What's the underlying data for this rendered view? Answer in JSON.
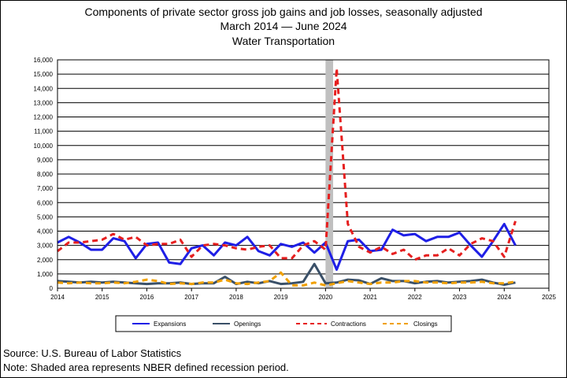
{
  "chart_data": {
    "type": "line",
    "title": "Components of private sector gross job gains and job losses, seasonally adjusted",
    "subtitle": "March 2014  — June 2024",
    "subsubtitle": "Water Transportation",
    "xlabel": "",
    "ylabel": "",
    "xlim": [
      2014,
      2025
    ],
    "ylim": [
      0,
      16000
    ],
    "x_ticks": [
      "2014",
      "2015",
      "2016",
      "2017",
      "2018",
      "2019",
      "2020",
      "2021",
      "2022",
      "2023",
      "2024",
      "2025"
    ],
    "y_ticks": [
      "0",
      "1,000",
      "2,000",
      "3,000",
      "4,000",
      "5,000",
      "6,000",
      "7,000",
      "8,000",
      "9,000",
      "10,000",
      "11,000",
      "12,000",
      "13,000",
      "14,000",
      "15,000",
      "16,000"
    ],
    "grid": "horizontal",
    "legend_position": "bottom",
    "recession_shading": {
      "start": 2020.0,
      "end": 2020.17
    },
    "x": [
      2014.0,
      2014.25,
      2014.5,
      2014.75,
      2015.0,
      2015.25,
      2015.5,
      2015.75,
      2016.0,
      2016.25,
      2016.5,
      2016.75,
      2017.0,
      2017.25,
      2017.5,
      2017.75,
      2018.0,
      2018.25,
      2018.5,
      2018.75,
      2019.0,
      2019.25,
      2019.5,
      2019.75,
      2020.0,
      2020.25,
      2020.5,
      2020.75,
      2021.0,
      2021.25,
      2021.5,
      2021.75,
      2022.0,
      2022.25,
      2022.5,
      2022.75,
      2023.0,
      2023.25,
      2023.5,
      2023.75,
      2024.0,
      2024.25
    ],
    "series": [
      {
        "name": "Expansions",
        "color": "#1f1fe6",
        "dash": "solid",
        "values": [
          3200,
          3600,
          3200,
          2700,
          2700,
          3500,
          3300,
          2100,
          3100,
          3200,
          1800,
          1700,
          2800,
          3000,
          2300,
          3200,
          3000,
          3600,
          2600,
          2300,
          3100,
          2900,
          3200,
          2500,
          3200,
          1300,
          3300,
          3400,
          2600,
          2700,
          4100,
          3700,
          3800,
          3300,
          3600,
          3600,
          3900,
          3000,
          2200,
          3300,
          4500,
          3000
        ]
      },
      {
        "name": "Openings",
        "color": "#3a5068",
        "dash": "solid",
        "values": [
          500,
          450,
          400,
          450,
          400,
          450,
          400,
          350,
          300,
          350,
          350,
          400,
          300,
          350,
          350,
          800,
          300,
          450,
          350,
          500,
          300,
          350,
          450,
          1700,
          350,
          400,
          600,
          550,
          300,
          700,
          500,
          500,
          350,
          450,
          500,
          400,
          450,
          500,
          600,
          400,
          250,
          400
        ]
      },
      {
        "name": "Contractions",
        "color": "#e61f1f",
        "dash": "dash",
        "values": [
          2600,
          3200,
          3200,
          3300,
          3400,
          3800,
          3400,
          3600,
          3000,
          3100,
          3100,
          3400,
          2200,
          3000,
          3100,
          3000,
          2800,
          2700,
          2900,
          3000,
          2100,
          2100,
          3000,
          3300,
          2700,
          15400,
          4500,
          2900,
          2500,
          2900,
          2400,
          2700,
          2000,
          2300,
          2300,
          2800,
          2300,
          3100,
          3500,
          3300,
          2200,
          4700
        ]
      },
      {
        "name": "Closings",
        "color": "#f0a000",
        "dash": "dash",
        "values": [
          400,
          350,
          400,
          350,
          350,
          400,
          350,
          450,
          600,
          500,
          300,
          350,
          300,
          400,
          400,
          600,
          350,
          300,
          400,
          500,
          1100,
          200,
          200,
          400,
          200,
          350,
          500,
          400,
          300,
          400,
          400,
          500,
          500,
          400,
          400,
          350,
          400,
          400,
          450,
          350,
          350,
          450
        ]
      }
    ]
  },
  "footer": {
    "source": "Source: U.S. Bureau of Labor Statistics",
    "note": "Note: Shaded area represents NBER defined recession period."
  }
}
